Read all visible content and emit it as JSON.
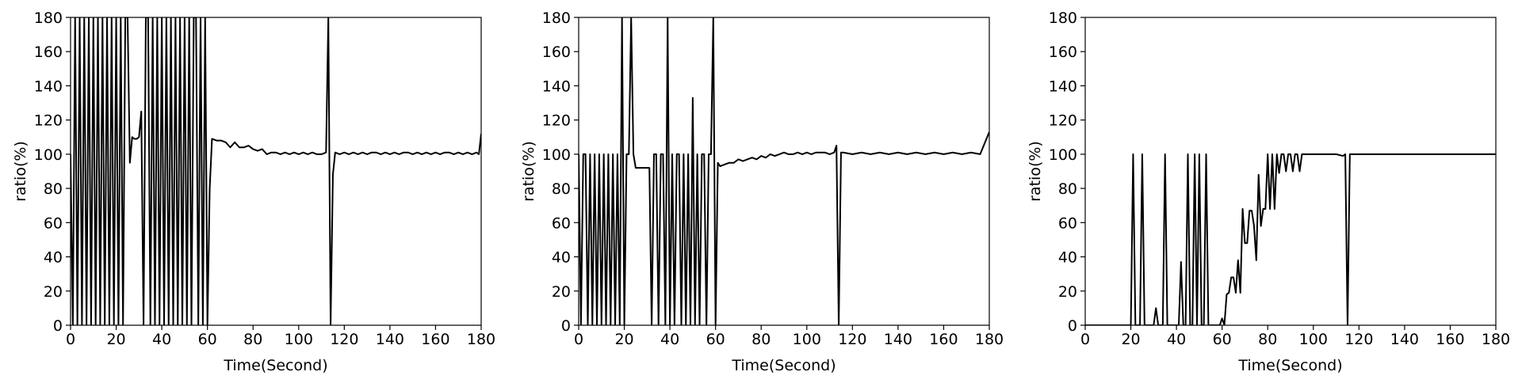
{
  "chart_data": [
    {
      "type": "line",
      "xlabel": "Time(Second)",
      "ylabel": "ratio(%)",
      "color": "#000000",
      "xlim": [
        0,
        180
      ],
      "ylim": [
        0,
        180
      ],
      "xticks": [
        0,
        20,
        40,
        60,
        80,
        100,
        120,
        140,
        160,
        180
      ],
      "yticks": [
        0,
        20,
        40,
        60,
        80,
        100,
        120,
        140,
        160,
        180
      ],
      "x": [
        0,
        1,
        2,
        3,
        4,
        5,
        6,
        7,
        8,
        9,
        10,
        11,
        12,
        13,
        14,
        15,
        16,
        17,
        18,
        19,
        20,
        21,
        22,
        23,
        24,
        25,
        26,
        27,
        28,
        29,
        30,
        31,
        32,
        33,
        34,
        35,
        36,
        37,
        38,
        39,
        40,
        41,
        42,
        43,
        44,
        45,
        46,
        47,
        48,
        49,
        50,
        51,
        52,
        53,
        54,
        55,
        56,
        57,
        58,
        59,
        60,
        61,
        62,
        64,
        66,
        68,
        70,
        72,
        74,
        76,
        78,
        80,
        82,
        84,
        86,
        88,
        90,
        92,
        94,
        96,
        98,
        100,
        102,
        104,
        106,
        108,
        110,
        112,
        113,
        114,
        115,
        116,
        118,
        120,
        122,
        124,
        126,
        128,
        130,
        132,
        134,
        136,
        138,
        140,
        142,
        144,
        146,
        148,
        150,
        152,
        154,
        156,
        158,
        160,
        162,
        164,
        166,
        168,
        170,
        172,
        174,
        176,
        178,
        179,
        180
      ],
      "values": [
        100,
        0,
        180,
        0,
        180,
        0,
        180,
        0,
        180,
        0,
        180,
        0,
        180,
        0,
        180,
        0,
        180,
        0,
        180,
        0,
        180,
        0,
        180,
        0,
        180,
        180,
        95,
        110,
        109,
        109,
        110,
        125,
        0,
        180,
        180,
        0,
        180,
        0,
        180,
        0,
        180,
        0,
        180,
        0,
        180,
        0,
        180,
        0,
        180,
        0,
        180,
        0,
        180,
        0,
        180,
        180,
        0,
        180,
        0,
        180,
        0,
        80,
        109,
        108,
        108,
        107,
        104,
        107,
        104,
        104,
        105,
        103,
        102,
        103,
        100,
        101,
        101,
        100,
        101,
        100,
        101,
        100,
        101,
        100,
        101,
        100,
        100,
        101,
        180,
        0,
        88,
        101,
        100,
        101,
        100,
        101,
        100,
        101,
        100,
        101,
        101,
        100,
        101,
        100,
        101,
        100,
        101,
        101,
        100,
        101,
        100,
        101,
        100,
        101,
        100,
        101,
        101,
        100,
        101,
        100,
        101,
        100,
        101,
        100,
        112
      ]
    },
    {
      "type": "line",
      "xlabel": "Time(Second)",
      "ylabel": "ratio(%)",
      "color": "#000000",
      "xlim": [
        0,
        180
      ],
      "ylim": [
        0,
        180
      ],
      "xticks": [
        0,
        20,
        40,
        60,
        80,
        100,
        120,
        140,
        160,
        180
      ],
      "yticks": [
        0,
        20,
        40,
        60,
        80,
        100,
        120,
        140,
        160,
        180
      ],
      "x": [
        0,
        1,
        2,
        3,
        4,
        5,
        6,
        7,
        8,
        9,
        10,
        11,
        12,
        13,
        14,
        15,
        16,
        17,
        18,
        19,
        20,
        21,
        22,
        23,
        24,
        25,
        26,
        27,
        28,
        29,
        30,
        31,
        32,
        33,
        34,
        35,
        36,
        37,
        38,
        39,
        40,
        41,
        42,
        43,
        44,
        45,
        46,
        47,
        48,
        49,
        50,
        51,
        52,
        53,
        54,
        55,
        56,
        57,
        58,
        59,
        60,
        61,
        62,
        64,
        66,
        68,
        70,
        72,
        74,
        76,
        78,
        80,
        82,
        84,
        86,
        88,
        90,
        92,
        94,
        96,
        98,
        100,
        102,
        104,
        106,
        108,
        110,
        112,
        113,
        114,
        115,
        116,
        120,
        124,
        128,
        132,
        136,
        140,
        144,
        148,
        152,
        156,
        160,
        164,
        168,
        172,
        176,
        180
      ],
      "values": [
        100,
        0,
        100,
        100,
        0,
        100,
        0,
        100,
        0,
        100,
        0,
        100,
        0,
        100,
        0,
        100,
        0,
        100,
        0,
        180,
        0,
        100,
        100,
        180,
        100,
        92,
        92,
        92,
        92,
        92,
        92,
        92,
        0,
        100,
        100,
        0,
        100,
        100,
        0,
        180,
        0,
        100,
        0,
        100,
        100,
        0,
        100,
        0,
        100,
        0,
        133,
        0,
        100,
        0,
        100,
        100,
        0,
        100,
        100,
        180,
        0,
        95,
        93,
        94,
        95,
        95,
        97,
        96,
        97,
        98,
        97,
        99,
        98,
        100,
        99,
        100,
        101,
        100,
        100,
        101,
        100,
        101,
        100,
        101,
        101,
        101,
        100,
        101,
        105,
        0,
        101,
        101,
        100,
        101,
        100,
        101,
        100,
        101,
        100,
        101,
        100,
        101,
        100,
        101,
        100,
        101,
        100,
        113
      ]
    },
    {
      "type": "line",
      "xlabel": "Time(Second)",
      "ylabel": "ratio(%)",
      "color": "#000000",
      "xlim": [
        0,
        180
      ],
      "ylim": [
        0,
        180
      ],
      "xticks": [
        0,
        20,
        40,
        60,
        80,
        100,
        120,
        140,
        160,
        180
      ],
      "yticks": [
        0,
        20,
        40,
        60,
        80,
        100,
        120,
        140,
        160,
        180
      ],
      "x": [
        0,
        20,
        21,
        22,
        23,
        24,
        25,
        26,
        27,
        28,
        29,
        30,
        31,
        32,
        33,
        34,
        35,
        36,
        37,
        38,
        39,
        40,
        41,
        42,
        43,
        44,
        45,
        46,
        47,
        48,
        49,
        50,
        51,
        52,
        53,
        54,
        55,
        56,
        57,
        58,
        59,
        60,
        61,
        62,
        63,
        64,
        65,
        66,
        67,
        68,
        69,
        70,
        71,
        72,
        73,
        74,
        75,
        76,
        77,
        78,
        79,
        80,
        81,
        82,
        83,
        84,
        85,
        86,
        87,
        88,
        89,
        90,
        91,
        92,
        93,
        94,
        95,
        100,
        110,
        113,
        114,
        115,
        116,
        180
      ],
      "values": [
        0,
        0,
        100,
        0,
        0,
        0,
        100,
        0,
        0,
        0,
        0,
        0,
        10,
        0,
        0,
        0,
        100,
        0,
        0,
        0,
        0,
        0,
        0,
        37,
        0,
        0,
        100,
        0,
        0,
        100,
        0,
        100,
        0,
        0,
        100,
        0,
        0,
        0,
        0,
        0,
        0,
        4,
        0,
        18,
        19,
        28,
        28,
        19,
        38,
        19,
        68,
        48,
        48,
        67,
        67,
        58,
        38,
        88,
        58,
        68,
        68,
        100,
        68,
        100,
        68,
        100,
        89,
        100,
        100,
        90,
        100,
        100,
        90,
        100,
        100,
        90,
        100,
        100,
        100,
        99,
        100,
        0,
        100,
        100
      ]
    }
  ]
}
